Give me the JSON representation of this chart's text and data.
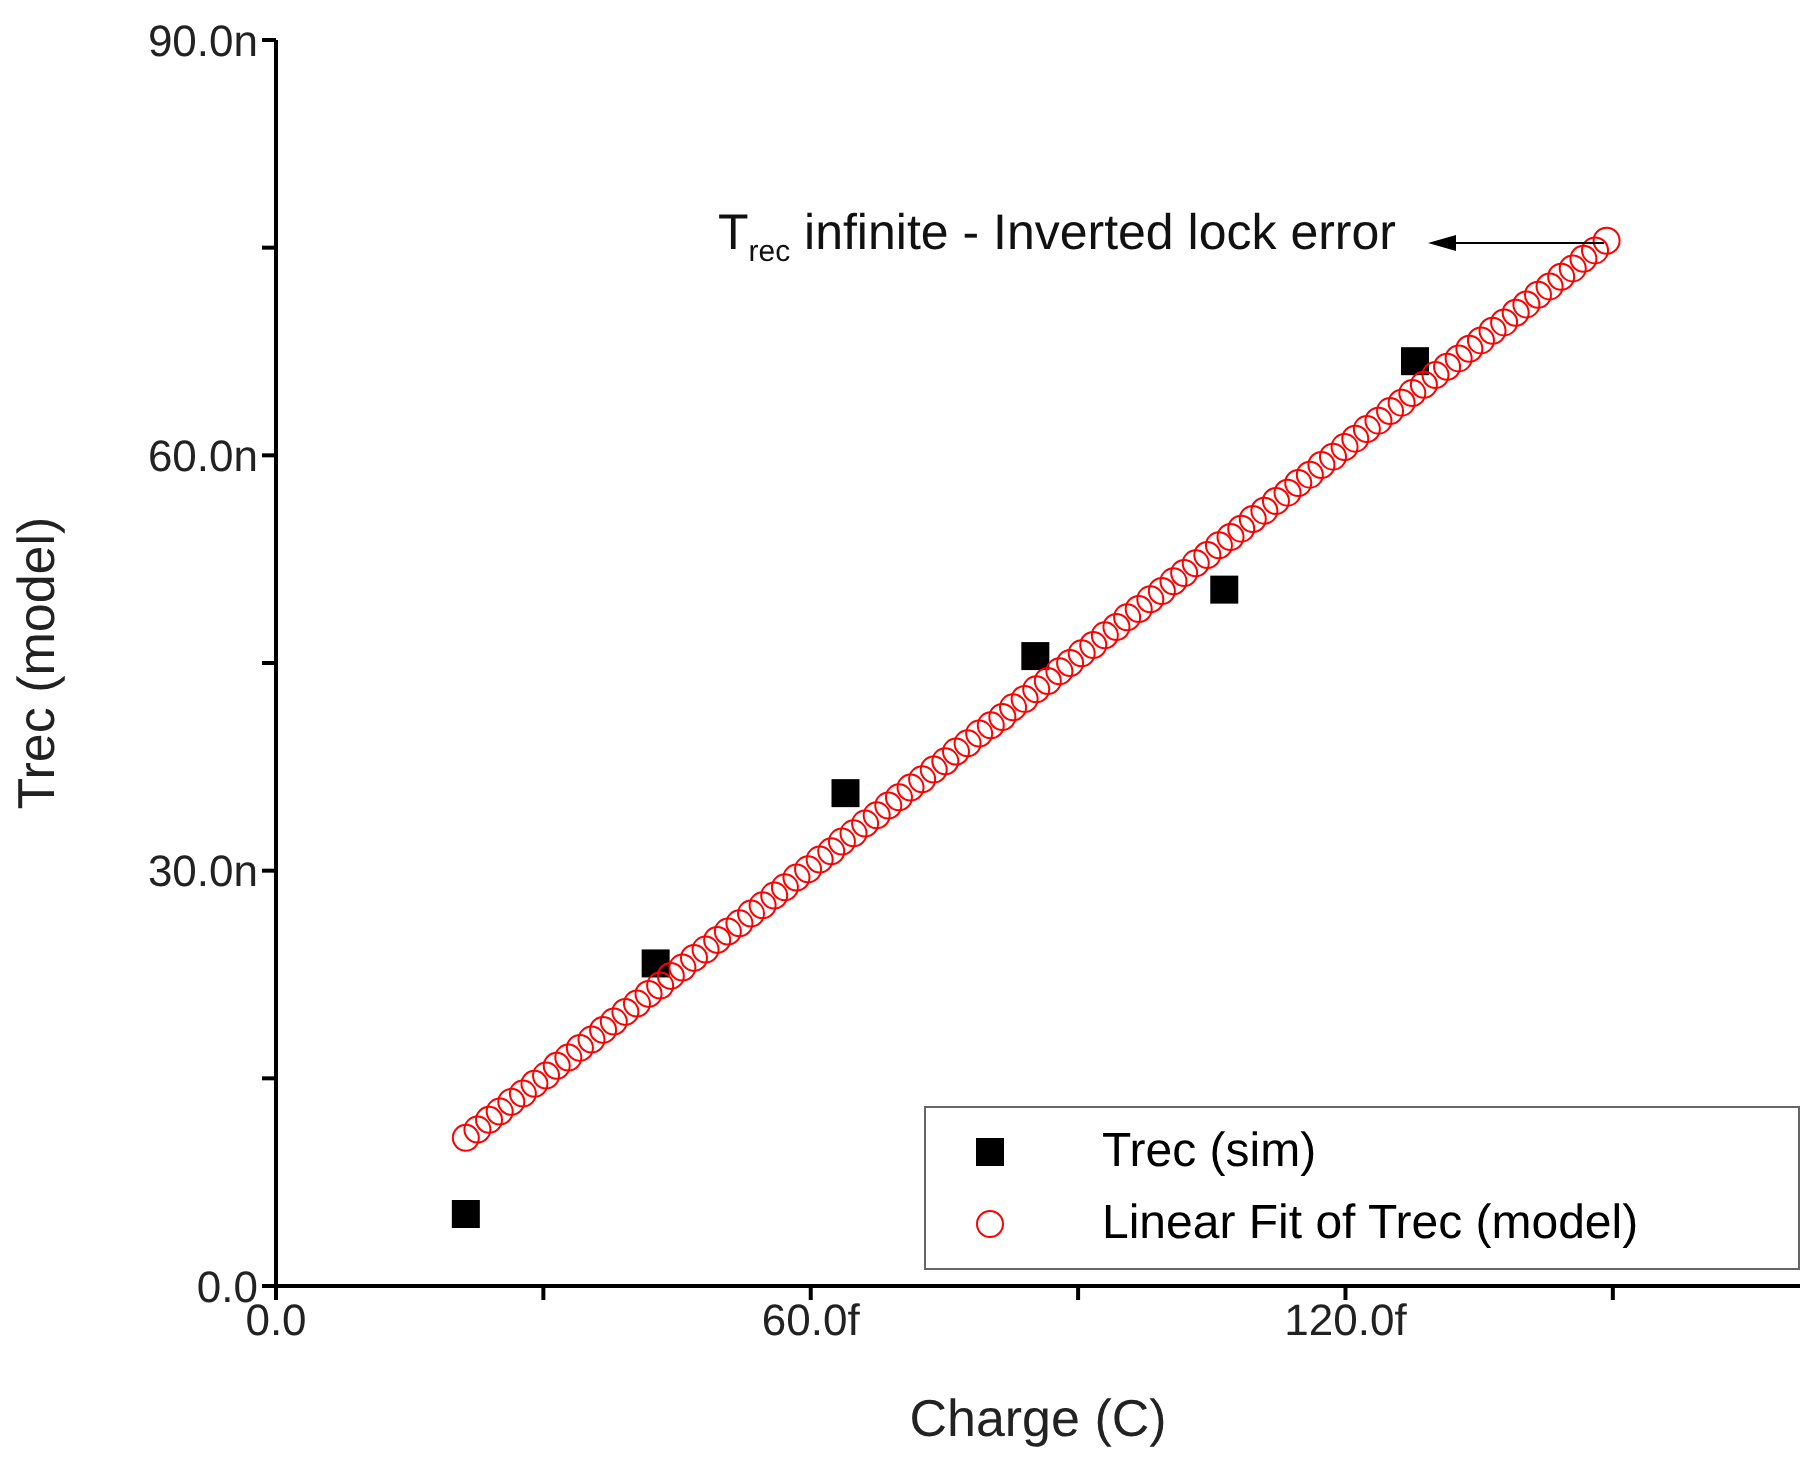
{
  "chart_data": {
    "type": "scatter",
    "xlabel": "Charge (C)",
    "ylabel": "Trec (model)",
    "xlim": [
      0,
      171
    ],
    "ylim": [
      0,
      90
    ],
    "xticks": [
      {
        "value": 0,
        "label": "0.0"
      },
      {
        "value": 30,
        "label": null
      },
      {
        "value": 60,
        "label": "60.0f"
      },
      {
        "value": 90,
        "label": null
      },
      {
        "value": 120,
        "label": "120.0f"
      },
      {
        "value": 150,
        "label": null
      }
    ],
    "yticks": [
      {
        "value": 0,
        "label": "0.0"
      },
      {
        "value": 15,
        "label": null
      },
      {
        "value": 30,
        "label": "30.0n"
      },
      {
        "value": 45,
        "label": null
      },
      {
        "value": 60,
        "label": "60.0n"
      },
      {
        "value": 75,
        "label": null
      },
      {
        "value": 90,
        "label": "90.0n"
      }
    ],
    "grid": false,
    "legend": "bottom right",
    "annotations": [
      "T$_{rec}$ infinite - Inverted lock error"
    ],
    "series": [
      {
        "name": "Trec (sim)",
        "type": "scatter",
        "marker": "square",
        "color": "#000000",
        "x": [
          21.3,
          42.6,
          63.9,
          85.2,
          106.4,
          127.8
        ],
        "values": [
          5.2,
          23.3,
          35.6,
          45.5,
          50.3,
          66.8
        ]
      },
      {
        "name": "Linear Fit of Trec (model)",
        "type": "scatter",
        "marker": "circle",
        "color": "#ff0000",
        "x": [
          21.3,
          22.6,
          23.9,
          25.1,
          26.4,
          27.7,
          29.0,
          30.3,
          31.5,
          32.8,
          34.1,
          35.4,
          36.7,
          37.9,
          39.2,
          40.5,
          41.8,
          43.1,
          44.3,
          45.6,
          46.9,
          48.2,
          49.5,
          50.7,
          52.0,
          53.3,
          54.6,
          55.9,
          57.1,
          58.4,
          59.7,
          61.0,
          62.3,
          63.5,
          64.8,
          66.1,
          67.4,
          68.7,
          69.9,
          71.2,
          72.5,
          73.8,
          75.1,
          76.3,
          77.6,
          78.9,
          80.2,
          81.5,
          82.7,
          84.0,
          85.3,
          86.6,
          87.9,
          89.1,
          90.4,
          91.7,
          93.0,
          94.3,
          95.5,
          96.8,
          98.1,
          99.4,
          100.7,
          101.9,
          103.2,
          104.5,
          105.8,
          107.1,
          108.3,
          109.6,
          110.9,
          112.2,
          113.5,
          114.7,
          116.0,
          117.3,
          118.6,
          119.9,
          121.1,
          122.4,
          123.7,
          125.0,
          126.3,
          127.5,
          128.8,
          130.1,
          131.4,
          132.7,
          133.9,
          135.2,
          136.5,
          137.8,
          139.1,
          140.3,
          141.6,
          142.9,
          144.2,
          145.5,
          146.7,
          148.0,
          149.3
        ],
        "values": [
          10.7,
          11.3,
          12.0,
          12.6,
          13.3,
          13.9,
          14.6,
          15.2,
          15.9,
          16.5,
          17.2,
          17.8,
          18.5,
          19.1,
          19.8,
          20.4,
          21.1,
          21.7,
          22.4,
          23.0,
          23.7,
          24.3,
          25.0,
          25.6,
          26.2,
          26.9,
          27.5,
          28.2,
          28.8,
          29.5,
          30.1,
          30.8,
          31.4,
          32.1,
          32.7,
          33.4,
          34.0,
          34.7,
          35.3,
          36.0,
          36.6,
          37.3,
          37.9,
          38.6,
          39.2,
          39.9,
          40.5,
          41.1,
          41.8,
          42.4,
          43.1,
          43.7,
          44.4,
          45.0,
          45.7,
          46.3,
          47.0,
          47.6,
          48.3,
          48.9,
          49.6,
          50.2,
          50.9,
          51.5,
          52.2,
          52.8,
          53.5,
          54.1,
          54.7,
          55.4,
          56.0,
          56.7,
          57.3,
          58.0,
          58.6,
          59.3,
          59.9,
          60.6,
          61.2,
          61.9,
          62.5,
          63.2,
          63.8,
          64.5,
          65.1,
          65.8,
          66.4,
          67.0,
          67.7,
          68.3,
          69.0,
          69.6,
          70.3,
          70.9,
          71.6,
          72.2,
          72.9,
          73.5,
          74.2,
          74.8,
          75.5
        ]
      }
    ]
  }
}
